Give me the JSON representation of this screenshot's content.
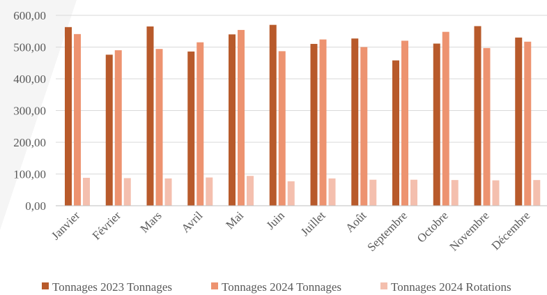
{
  "chart_data": {
    "type": "bar",
    "categories": [
      "Janvier",
      "Février",
      "Mars",
      "Avril",
      "Mai",
      "Juin",
      "Juillet",
      "Août",
      "Septembre",
      "Octobre",
      "Novembre",
      "Décembre"
    ],
    "series": [
      {
        "name": "Tonnages 2023 Tonnages",
        "color": "#b85a2b",
        "values": [
          563,
          476,
          565,
          486,
          540,
          570,
          510,
          527,
          458,
          511,
          566,
          530
        ]
      },
      {
        "name": "Tonnages 2024 Tonnages",
        "color": "#ed9370",
        "values": [
          541,
          490,
          494,
          515,
          554,
          487,
          524,
          500,
          520,
          548,
          497,
          517
        ]
      },
      {
        "name": "Tonnages 2024 Rotations",
        "color": "#f4bfae",
        "values": [
          88,
          87,
          86,
          89,
          94,
          77,
          86,
          82,
          82,
          81,
          80,
          81
        ]
      }
    ],
    "yticks": [
      "0,00",
      "100,00",
      "200,00",
      "300,00",
      "400,00",
      "500,00",
      "600,00"
    ],
    "ylim": [
      0,
      600
    ],
    "grid": true,
    "legend": "bottom"
  }
}
